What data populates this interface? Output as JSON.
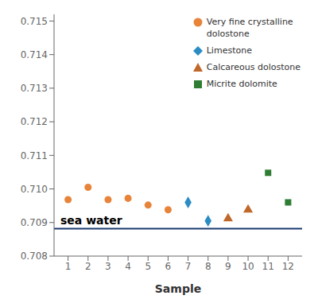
{
  "chart_data": {
    "type": "scatter",
    "xlabel": "Sample",
    "xlim": [
      0.3,
      12.7
    ],
    "xticks": [
      1,
      2,
      3,
      4,
      5,
      6,
      7,
      8,
      9,
      10,
      11,
      12
    ],
    "ylim": [
      0.708,
      0.7152
    ],
    "yticks": [
      0.708,
      0.709,
      {
        "value": 0.71,
        "label": "0.710"
      },
      0.711,
      0.712,
      0.713,
      0.714,
      0.715
    ],
    "grid": false,
    "legend": "upper right",
    "series": [
      {
        "name": "Very fine crystalline\ndolostone",
        "color": "#E8843A",
        "marker": "circle",
        "x": [
          1,
          2,
          3,
          4,
          5,
          6
        ],
        "values": [
          0.70968,
          0.71005,
          0.70968,
          0.70972,
          0.70952,
          0.70938
        ]
      },
      {
        "name": "Limestone",
        "color": "#2B8CC4",
        "marker": "diamond",
        "x": [
          7,
          8
        ],
        "values": [
          0.7096,
          0.70905
        ]
      },
      {
        "name": "Calcareous dolostone",
        "color": "#C0672A",
        "marker": "triangle",
        "x": [
          9,
          10
        ],
        "values": [
          0.70912,
          0.70938
        ]
      },
      {
        "name": "Micrite dolomite",
        "color": "#2E7D32",
        "marker": "square",
        "x": [
          11,
          12
        ],
        "values": [
          0.71048,
          0.7096
        ]
      }
    ],
    "annotations": [
      {
        "type": "hline",
        "y": 0.70882,
        "label": "sea water",
        "color": "#1A3A6E"
      }
    ]
  }
}
